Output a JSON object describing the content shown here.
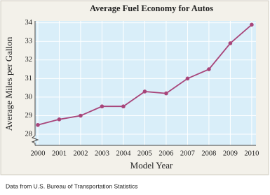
{
  "chart_data": {
    "type": "line",
    "title": "Average Fuel Economy for Autos",
    "x_label": "Model Year",
    "y_label": "Average Miles per Gallon",
    "note": "Data from U.S. Bureau of Transportation Statistics",
    "x": [
      2000,
      2001,
      2002,
      2003,
      2004,
      2005,
      2006,
      2007,
      2008,
      2009,
      2010
    ],
    "values": [
      28.5,
      28.8,
      29.0,
      29.5,
      29.5,
      30.3,
      30.2,
      31.0,
      31.5,
      32.9,
      33.9
    ],
    "color": "#a8457a",
    "xlim": [
      1999.87,
      2010.2
    ],
    "xticks": [
      2000,
      2001,
      2002,
      2003,
      2004,
      2005,
      2006,
      2007,
      2008,
      2009,
      2010
    ],
    "ylim": [
      27.4,
      34.1
    ],
    "yticks": [
      28,
      29,
      30,
      31,
      32,
      33,
      34
    ],
    "grid": true
  }
}
